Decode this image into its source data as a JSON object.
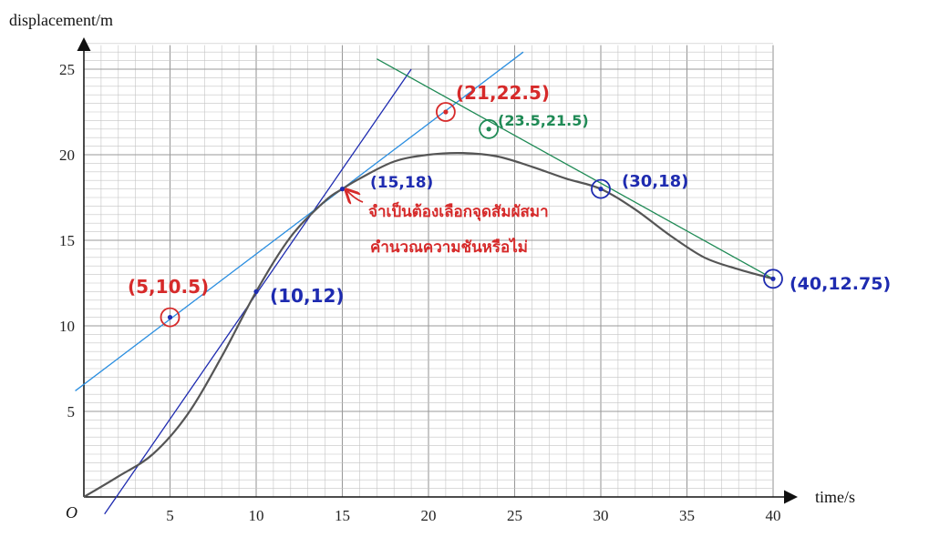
{
  "chart_data": {
    "type": "line",
    "xlabel": "time/s",
    "ylabel": "displacement/m",
    "origin_label": "O",
    "xlim": [
      0,
      40
    ],
    "ylim": [
      0,
      25
    ],
    "x_ticks": [
      "5",
      "10",
      "15",
      "20",
      "25",
      "30",
      "35",
      "40"
    ],
    "y_ticks": [
      "5",
      "10",
      "15",
      "20",
      "25"
    ],
    "grid": true,
    "series": [
      {
        "color": "#555555",
        "x": [
          0,
          2,
          4,
          6,
          8,
          10,
          12,
          14,
          15,
          16,
          18,
          20,
          22,
          24,
          26,
          28,
          30,
          32,
          34,
          36,
          38,
          40
        ],
        "y": [
          0,
          1.2,
          2.5,
          4.8,
          8.2,
          12.0,
          15.2,
          17.3,
          18.0,
          18.6,
          19.6,
          20.0,
          20.1,
          19.9,
          19.3,
          18.6,
          18.0,
          16.8,
          15.3,
          14.0,
          13.3,
          12.75
        ]
      }
    ],
    "lines": [
      {
        "color": "#1e2bb0",
        "x": [
          1.2,
          19.0
        ],
        "y": [
          -1.0,
          25.0
        ]
      },
      {
        "color": "#2a8ee0",
        "x": [
          -0.5,
          25.5
        ],
        "y": [
          6.2,
          26.0
        ]
      },
      {
        "color": "#1f8a55",
        "x": [
          17.0,
          40.0
        ],
        "y": [
          25.6,
          12.75
        ]
      }
    ],
    "points": [
      {
        "x": 5,
        "y": 10.5,
        "color": "#1e2bb0",
        "circle": "#d62a2a"
      },
      {
        "x": 10,
        "y": 12,
        "color": "#1e2bb0",
        "circle": ""
      },
      {
        "x": 15,
        "y": 18,
        "color": "#1e2bb0",
        "circle": ""
      },
      {
        "x": 21,
        "y": 22.5,
        "color": "#d62a2a",
        "circle": "#d62a2a"
      },
      {
        "x": 23.5,
        "y": 21.5,
        "color": "#1f8a55",
        "circle": "#1f8a55"
      },
      {
        "x": 30,
        "y": 18,
        "color": "#1e2bb0",
        "circle": "#1e2bb0"
      },
      {
        "x": 40,
        "y": 12.75,
        "color": "#1e2bb0",
        "circle": "#1e2bb0"
      }
    ],
    "annotations": [
      {
        "text": "(5,10.5)",
        "color": "#d62a2a"
      },
      {
        "text": "(10,12)",
        "color": "#1e2bb0"
      },
      {
        "text": "(15,18)",
        "color": "#1e2bb0"
      },
      {
        "text": "(21,22.5)",
        "color": "#d62a2a"
      },
      {
        "text": "(23.5,21.5)",
        "color": "#1f8a55"
      },
      {
        "text": "(30,18)",
        "color": "#1e2bb0"
      },
      {
        "text": "(40,12.75)",
        "color": "#1e2bb0"
      },
      {
        "text": "จำเป็นต้องเลือกจุดสัมผัสมา",
        "color": "#d62a2a"
      },
      {
        "text": "คำนวณความชันหรือไม่",
        "color": "#d62a2a"
      }
    ]
  }
}
